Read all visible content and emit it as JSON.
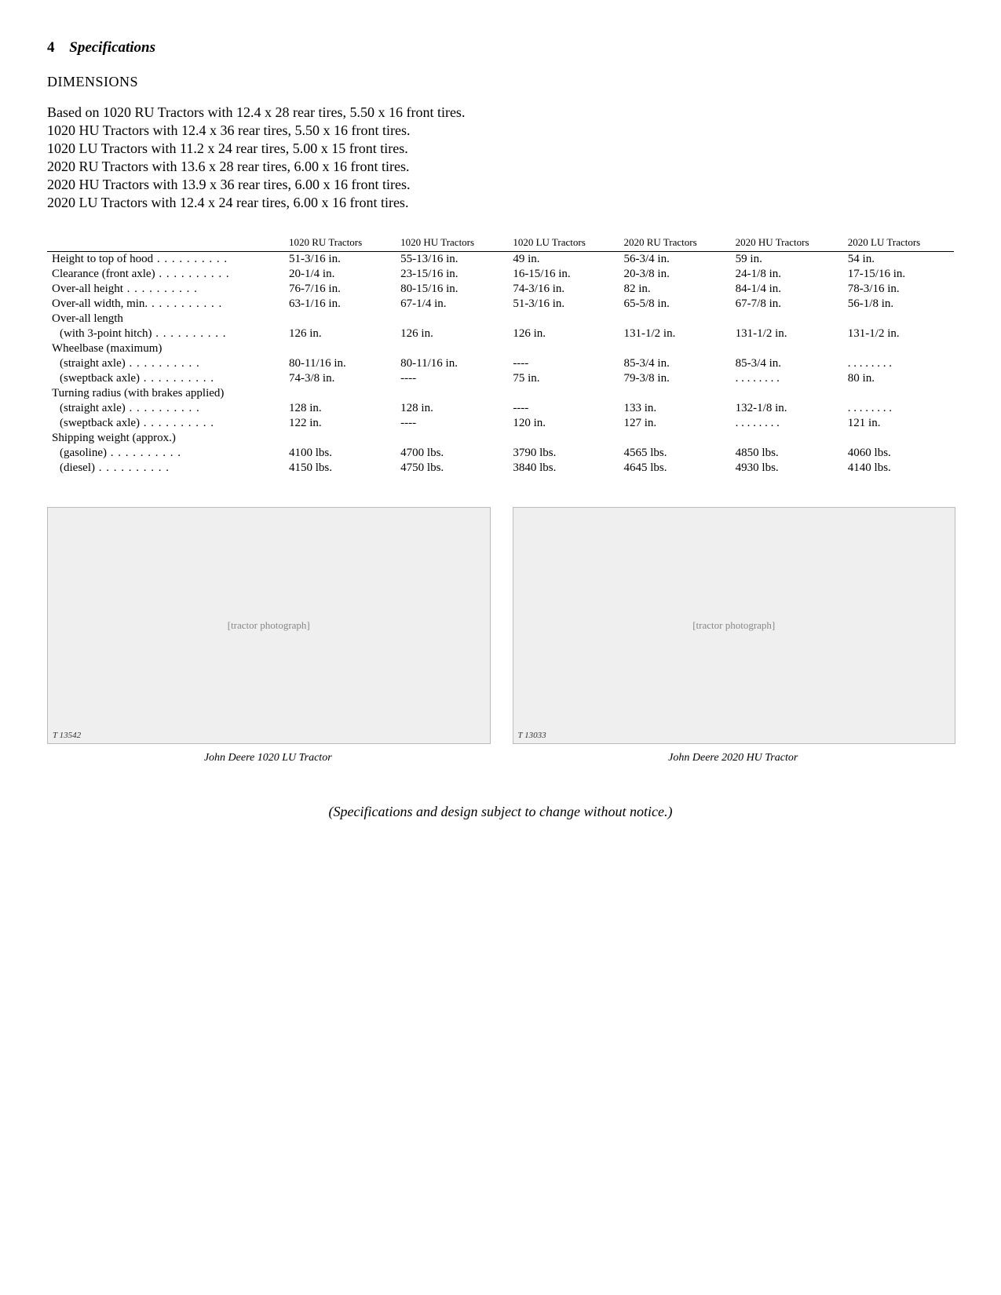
{
  "header": {
    "page_number": "4",
    "section": "Specifications"
  },
  "heading": "DIMENSIONS",
  "intro_lines": [
    "Based on 1020 RU Tractors with 12.4 x 28 rear tires, 5.50 x 16 front tires.",
    "1020 HU Tractors with 12.4 x 36 rear tires, 5.50 x 16 front tires.",
    "1020 LU Tractors with 11.2 x 24 rear tires, 5.00 x 15 front tires.",
    "2020 RU Tractors with 13.6 x 28 rear tires, 6.00 x 16 front tires.",
    "2020 HU Tractors with 13.9 x 36 rear tires, 6.00 x 16 front tires.",
    "2020 LU Tractors with 12.4 x 24 rear tires, 6.00 x 16 front tires."
  ],
  "table": {
    "columns": [
      "",
      "1020 RU Tractors",
      "1020 HU Tractors",
      "1020 LU Tractors",
      "2020 RU Tractors",
      "2020 HU Tractors",
      "2020 LU Tractors"
    ],
    "rows": [
      {
        "label": "Height to top of hood",
        "indent": false,
        "dots": true,
        "cells": [
          "51-3/16 in.",
          "55-13/16 in.",
          "49 in.",
          "56-3/4 in.",
          "59 in.",
          "54 in."
        ]
      },
      {
        "label": "Clearance (front axle)",
        "indent": false,
        "dots": true,
        "cells": [
          "20-1/4 in.",
          "23-15/16 in.",
          "16-15/16 in.",
          "20-3/8 in.",
          "24-1/8 in.",
          "17-15/16 in."
        ]
      },
      {
        "label": "Over-all height",
        "indent": false,
        "dots": true,
        "cells": [
          "76-7/16 in.",
          "80-15/16 in.",
          "74-3/16 in.",
          "82 in.",
          "84-1/4 in.",
          "78-3/16 in."
        ]
      },
      {
        "label": "Over-all width, min.",
        "indent": false,
        "dots": true,
        "cells": [
          "63-1/16 in.",
          "67-1/4 in.",
          "51-3/16 in.",
          "65-5/8 in.",
          "67-7/8 in.",
          "56-1/8 in."
        ]
      },
      {
        "label": "Over-all length",
        "indent": false,
        "dots": false,
        "cells": [
          "",
          "",
          "",
          "",
          "",
          ""
        ]
      },
      {
        "label": "(with 3-point hitch)",
        "indent": true,
        "dots": true,
        "cells": [
          "126 in.",
          "126 in.",
          "126 in.",
          "131-1/2 in.",
          "131-1/2 in.",
          "131-1/2 in."
        ]
      },
      {
        "label": "Wheelbase (maximum)",
        "indent": false,
        "dots": false,
        "cells": [
          "",
          "",
          "",
          "",
          "",
          ""
        ]
      },
      {
        "label": "(straight axle)",
        "indent": true,
        "dots": true,
        "cells": [
          "80-11/16 in.",
          "80-11/16 in.",
          "----",
          "85-3/4 in.",
          "85-3/4 in.",
          ". . . . . . . ."
        ]
      },
      {
        "label": "(sweptback axle)",
        "indent": true,
        "dots": true,
        "cells": [
          "74-3/8 in.",
          "----",
          "75 in.",
          "79-3/8 in.",
          ". . . . . . . .",
          "80 in."
        ]
      },
      {
        "label": "Turning radius (with brakes applied)",
        "indent": false,
        "dots": false,
        "cells": [
          "",
          "",
          "",
          "",
          "",
          ""
        ]
      },
      {
        "label": "(straight axle)",
        "indent": true,
        "dots": true,
        "cells": [
          "128 in.",
          "128 in.",
          "----",
          "133 in.",
          "132-1/8 in.",
          ". . . . . . . ."
        ]
      },
      {
        "label": "(sweptback axle)",
        "indent": true,
        "dots": true,
        "cells": [
          "122 in.",
          "----",
          "120 in.",
          "127 in.",
          ". . . . . . . .",
          "121 in."
        ]
      },
      {
        "label": "Shipping weight (approx.)",
        "indent": false,
        "dots": false,
        "cells": [
          "",
          "",
          "",
          "",
          "",
          ""
        ]
      },
      {
        "label": "(gasoline)",
        "indent": true,
        "dots": true,
        "cells": [
          "4100 lbs.",
          "4700 lbs.",
          "3790 lbs.",
          "4565 lbs.",
          "4850 lbs.",
          "4060 lbs."
        ]
      },
      {
        "label": "(diesel)",
        "indent": true,
        "dots": true,
        "cells": [
          "4150 lbs.",
          "4750 lbs.",
          "3840 lbs.",
          "4645 lbs.",
          "4930 lbs.",
          "4140 lbs."
        ]
      }
    ]
  },
  "figures": {
    "left": {
      "ref": "T 13542",
      "caption": "John Deere 1020 LU Tractor",
      "placeholder": "[tractor photograph]"
    },
    "right": {
      "ref": "T 13033",
      "caption": "John Deere 2020 HU Tractor",
      "placeholder": "[tractor photograph]"
    }
  },
  "footer_note": "(Specifications and design subject to change without notice.)"
}
